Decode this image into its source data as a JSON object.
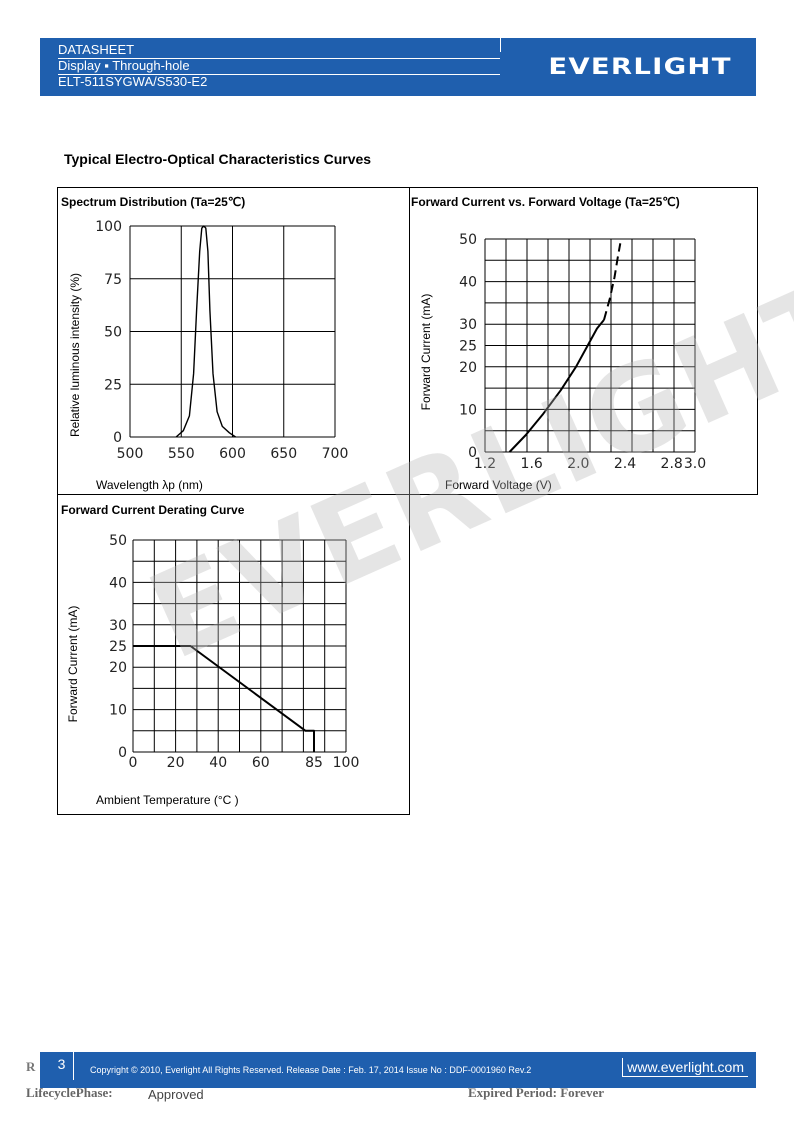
{
  "header": {
    "line1": "DATASHEET",
    "line2": "Display ▪ Through-hole",
    "line3": "ELT-511SYGWA/S530-E2",
    "logo": "EVERLIGHT"
  },
  "section_title": "Typical Electro-Optical Characteristics Curves",
  "watermark": "EVERLIGHT",
  "chart_data": [
    {
      "type": "line",
      "title": "Spectrum Distribution (Ta=25℃)",
      "xlabel": "Wavelength λp (nm)",
      "ylabel": "Relative luminous intensity (%)",
      "xlim": [
        500,
        700
      ],
      "ylim": [
        0,
        100
      ],
      "xticks": [
        "500",
        "550",
        "600",
        "650",
        "700"
      ],
      "yticks": [
        "0",
        "25",
        "50",
        "75",
        "100"
      ],
      "grid": true,
      "series": [
        {
          "x": [
            545,
            552,
            558,
            562,
            565,
            568,
            570,
            572,
            574,
            576,
            578,
            581,
            585,
            590,
            597,
            603
          ],
          "y": [
            0,
            3,
            10,
            30,
            60,
            88,
            99,
            100,
            99,
            88,
            60,
            30,
            12,
            5,
            2,
            0
          ]
        }
      ]
    },
    {
      "type": "line",
      "title": "Forward Current vs. Forward Voltage (Ta=25℃)",
      "xlabel": "Forward Voltage (V)",
      "ylabel": "Forward Current (mA)",
      "xlim": [
        1.2,
        3.0
      ],
      "ylim": [
        0,
        50
      ],
      "xticks": [
        "1.2",
        "1.6",
        "2.0",
        "2.4",
        "2.8",
        "3.0"
      ],
      "yticks": [
        "0",
        "10",
        "20",
        "25",
        "30",
        "40",
        "50"
      ],
      "grid": true,
      "series": [
        {
          "style": "solid",
          "x": [
            1.41,
            1.55,
            1.7,
            1.85,
            1.98,
            2.08,
            2.16,
            2.22
          ],
          "y": [
            0,
            4,
            9,
            14.5,
            20,
            25,
            29,
            31
          ]
        },
        {
          "style": "dashed",
          "x": [
            2.22,
            2.27,
            2.31,
            2.34,
            2.36
          ],
          "y": [
            31,
            36,
            41,
            46,
            49
          ]
        }
      ]
    },
    {
      "type": "line",
      "title": "Forward Current Derating Curve",
      "xlabel": "Ambient Temperature (°C )",
      "ylabel": "Forward Current (mA)",
      "xlim": [
        0,
        100
      ],
      "ylim": [
        0,
        50
      ],
      "xticks": [
        "0",
        "20",
        "40",
        "60",
        "85",
        "100"
      ],
      "yticks": [
        "0",
        "10",
        "20",
        "25",
        "30",
        "40",
        "50"
      ],
      "grid": true,
      "series": [
        {
          "x": [
            0,
            27,
            81,
            85,
            85
          ],
          "y": [
            25,
            25,
            5,
            5,
            0
          ]
        }
      ]
    }
  ],
  "footer": {
    "page_number": "3",
    "copyright": "Copyright © 2010, Everlight All Rights Reserved. Release Date : Feb. 17, 2014 Issue No : DDF-0001960 Rev.2",
    "website": "www.everlight.com",
    "left_fragment": "R",
    "lifecycle_label": "LifecyclePhase:",
    "lifecycle_value": "Approved",
    "expired": "Expired Period: Forever"
  }
}
